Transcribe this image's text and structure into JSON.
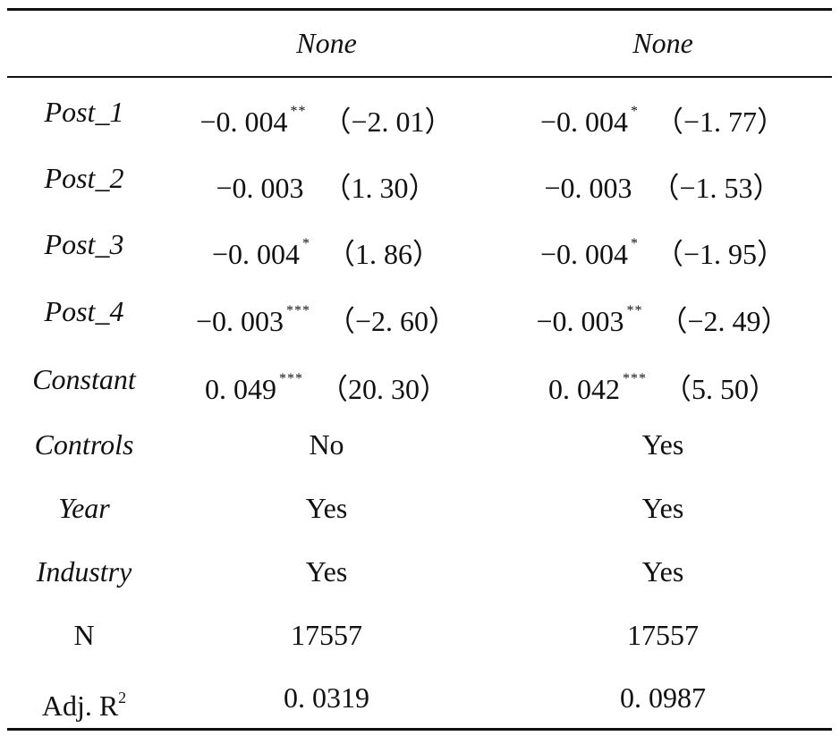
{
  "header": [
    "",
    "None",
    "None"
  ],
  "coef_rows": [
    {
      "label": "Post_1",
      "c1": {
        "coef": "−0. 004",
        "stars": "**",
        "t": "（−2. 01）"
      },
      "c2": {
        "coef": "−0. 004",
        "stars": "*",
        "t": "（−1. 77）"
      }
    },
    {
      "label": "Post_2",
      "c1": {
        "coef": "−0. 003",
        "stars": "",
        "t": "（1. 30）"
      },
      "c2": {
        "coef": "−0. 003",
        "stars": "",
        "t": "（−1. 53）"
      }
    },
    {
      "label": "Post_3",
      "c1": {
        "coef": "−0. 004",
        "stars": "*",
        "t": "（1. 86）"
      },
      "c2": {
        "coef": "−0. 004",
        "stars": "*",
        "t": "（−1. 95）"
      }
    },
    {
      "label": "Post_4",
      "c1": {
        "coef": "−0. 003",
        "stars": "***",
        "t": "（−2. 60）"
      },
      "c2": {
        "coef": "−0. 003",
        "stars": "**",
        "t": "（−2. 49）"
      }
    },
    {
      "label": "Constant",
      "c1": {
        "coef": "0. 049",
        "stars": "***",
        "t": "（20. 30）"
      },
      "c2": {
        "coef": "0. 042",
        "stars": "***",
        "t": "（5. 50）"
      }
    }
  ],
  "info_rows": [
    {
      "label": "Controls",
      "c1": "No",
      "c2": "Yes"
    },
    {
      "label": "Year",
      "c1": "Yes",
      "c2": "Yes"
    },
    {
      "label": "Industry",
      "c1": "Yes",
      "c2": "Yes"
    },
    {
      "label": "N",
      "c1": "17557",
      "c2": "17557"
    },
    {
      "label": "Adj. R",
      "label_sup": "2",
      "c1": "0. 0319",
      "c2": "0. 0987"
    }
  ]
}
